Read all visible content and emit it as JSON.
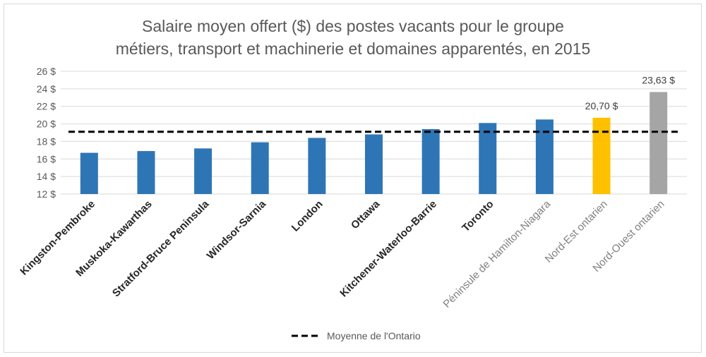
{
  "chart_data": {
    "type": "bar",
    "title_lines": [
      "Salaire moyen offert ($) des postes vacants pour le groupe",
      "métiers, transport et machinerie et domaines apparentés, en 2015"
    ],
    "categories": [
      "Kingston-Pembroke",
      "Muskoka-Kawarthas",
      "Stratford-Bruce Peninsula",
      "Windsor-Sarnia",
      "London",
      "Ottawa",
      "Kitchener-Waterloo-Barrie",
      "Toronto",
      "Péninsule de Hamilton-Niagara",
      "Nord-Est ontarien",
      "Nord-Ouest ontarien"
    ],
    "values": [
      16.7,
      16.9,
      17.2,
      17.9,
      18.4,
      18.8,
      19.4,
      20.1,
      20.5,
      20.7,
      23.63
    ],
    "bar_colors": [
      "#2E75B6",
      "#2E75B6",
      "#2E75B6",
      "#2E75B6",
      "#2E75B6",
      "#2E75B6",
      "#2E75B6",
      "#2E75B6",
      "#2E75B6",
      "#FFC000",
      "#A5A5A5"
    ],
    "data_labels": [
      null,
      null,
      null,
      null,
      null,
      null,
      null,
      null,
      null,
      "20,70 $",
      "23,63 $"
    ],
    "ylim": [
      12,
      26
    ],
    "yticks": [
      12,
      14,
      16,
      18,
      20,
      22,
      24,
      26
    ],
    "ytick_labels": [
      "12 $",
      "14 $",
      "16 $",
      "18 $",
      "20 $",
      "22 $",
      "24 $",
      "26 $"
    ],
    "grid": true,
    "reference_line": {
      "name": "Moyenne de l'Ontario",
      "value": 19.1,
      "line_style": "dashed",
      "color": "#000000"
    },
    "legend": {
      "position": "bottom"
    }
  }
}
